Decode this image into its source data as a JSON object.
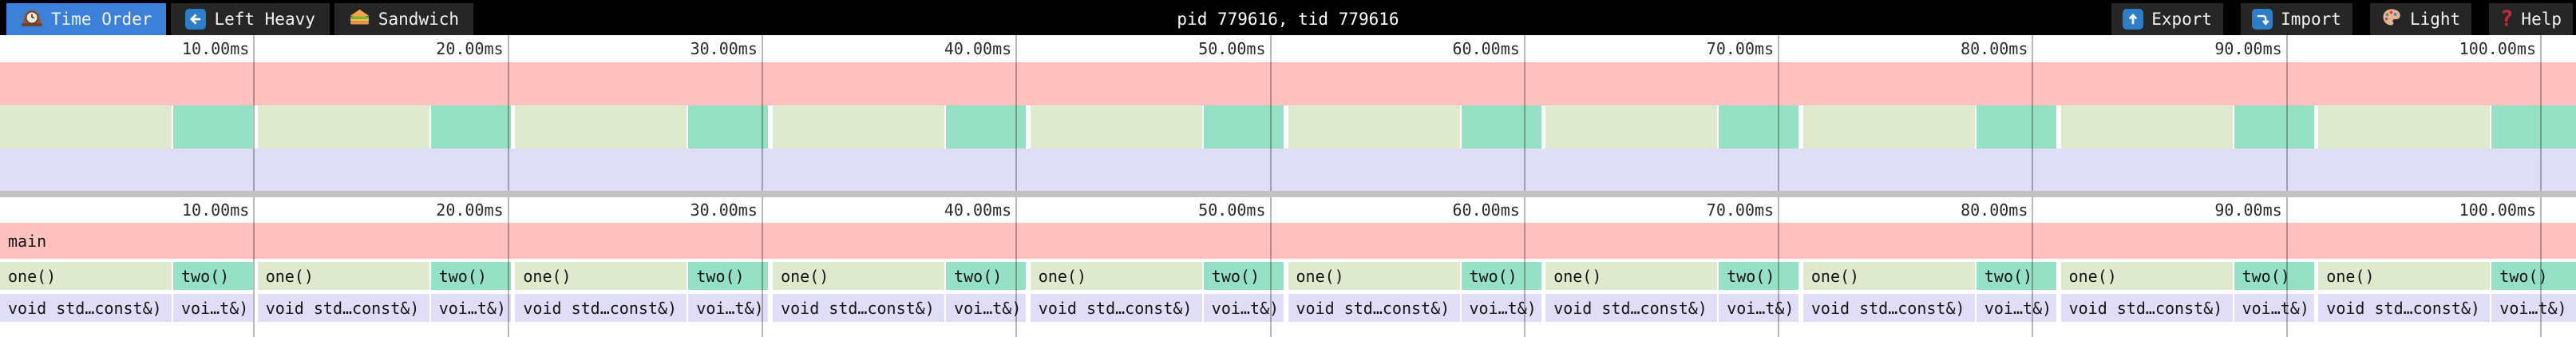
{
  "toolbar": {
    "tabs": [
      {
        "label": "Time Order",
        "icon": "clock-icon",
        "active": true
      },
      {
        "label": "Left Heavy",
        "icon": "left-arrow-icon",
        "active": false
      },
      {
        "label": "Sandwich",
        "icon": "sandwich-icon",
        "active": false
      }
    ],
    "title": "pid 779616, tid 779616",
    "actions": [
      {
        "label": "Export",
        "icon": "export-icon"
      },
      {
        "label": "Import",
        "icon": "import-icon"
      },
      {
        "label": "Light",
        "icon": "palette-icon"
      },
      {
        "label": "Help",
        "icon": "help-icon"
      }
    ]
  },
  "timeline": {
    "ticks": [
      "10.00ms",
      "20.00ms",
      "30.00ms",
      "40.00ms",
      "50.00ms",
      "60.00ms",
      "70.00ms",
      "80.00ms",
      "90.00ms",
      "100.00ms"
    ],
    "unit": "ms"
  },
  "flamegraph": {
    "root_label": "main",
    "iteration_count": 10,
    "call_labels": {
      "one": "one()",
      "two": "two()",
      "one_detail": "void std…const&)",
      "two_detail": "voi…t&)"
    }
  },
  "colors": {
    "active_tab": "#3c80da",
    "frame_main": "#ffc1c0",
    "frame_one": "#dfe9cd",
    "frame_two": "#96e0c5",
    "frame_detail": "#e0def7",
    "gridline": "rgba(0,0,0,0.28)",
    "divider": "#c2c2c2"
  }
}
